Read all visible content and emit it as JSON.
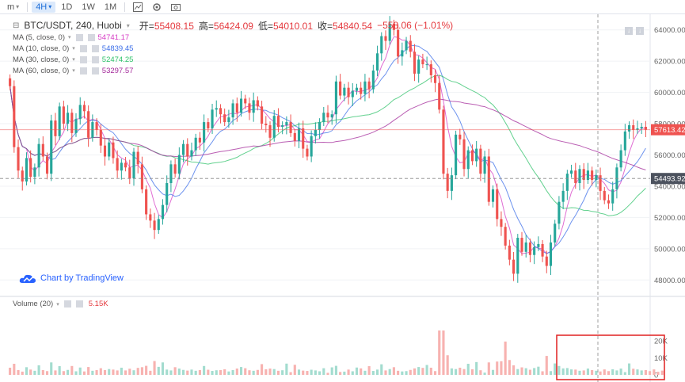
{
  "toolbar": {
    "interval_menu": "m",
    "active_interval": "4H",
    "intervals": [
      "1D",
      "1W",
      "1M"
    ]
  },
  "header": {
    "symbol": "BTC/USDT, 240, Huobi",
    "open_label": "开=",
    "open_value": "55408.15",
    "high_label": "高=",
    "high_value": "56424.09",
    "low_label": "低=",
    "low_value": "54010.01",
    "close_label": "收=",
    "close_value": "54840.54",
    "change": "−558.06 (−1.01%)"
  },
  "ma": [
    {
      "label": "MA (5, close, 0)",
      "value": "54741.17",
      "color": "#d63cc4"
    },
    {
      "label": "MA (10, close, 0)",
      "value": "54839.45",
      "color": "#3b6ee8"
    },
    {
      "label": "MA (30, close, 0)",
      "value": "52474.25",
      "color": "#2fc26a"
    },
    {
      "label": "MA (60, close, 0)",
      "value": "53297.57",
      "color": "#a3289a"
    }
  ],
  "watermark": "Chart by TradingView",
  "volume": {
    "label": "Volume (20)",
    "value": "5.15K",
    "ticks": [
      "20K",
      "10K",
      "0"
    ]
  },
  "price_axis": {
    "ticks": [
      "64000.00",
      "62000.00",
      "60000.00",
      "58000.00",
      "56000.00",
      "54000.00",
      "52000.00",
      "50000.00",
      "48000.00"
    ],
    "current_label": "57613.42",
    "cursor_label": "54493.92"
  },
  "colors": {
    "up": "#26a69a",
    "down": "#ef5350",
    "up_vol": "#a3dccf",
    "down_vol": "#f7b2b0",
    "highlight": "#e02020"
  },
  "chart_data": {
    "type": "candlestick",
    "ylim": [
      47000,
      65000
    ],
    "closes": [
      60400,
      56500,
      55000,
      54300,
      55800,
      54600,
      55200,
      56700,
      55900,
      54800,
      58200,
      57200,
      59100,
      58000,
      58700,
      57400,
      58300,
      59200,
      58800,
      57100,
      58100,
      57600,
      56600,
      55900,
      56800,
      55800,
      55000,
      55500,
      55200,
      54500,
      56200,
      55400,
      53800,
      52200,
      51800,
      51200,
      51900,
      52800,
      54200,
      55400,
      54800,
      56000,
      56700,
      55900,
      56300,
      57100,
      56800,
      58100,
      57700,
      58900,
      59000,
      58600,
      58100,
      58400,
      59300,
      58700,
      59600,
      59300,
      58700,
      59500,
      59100,
      58000,
      57900,
      57100,
      58500,
      57800,
      57900,
      58100,
      57400,
      56900,
      57700,
      56400,
      55900,
      57200,
      57600,
      58100,
      58700,
      58400,
      58600,
      60700,
      59800,
      60300,
      59700,
      60100,
      60300,
      59900,
      60700,
      60200,
      61400,
      62500,
      63600,
      63300,
      64400,
      64000,
      62300,
      62700,
      63300,
      62600,
      61200,
      62100,
      61800,
      61800,
      61100,
      60600,
      58900,
      54800,
      53700,
      54700,
      57300,
      57000,
      55100,
      56300,
      55600,
      56400,
      54800,
      55900,
      53000,
      53800,
      51900,
      51400,
      50200,
      49300,
      48400,
      50700,
      49800,
      50400,
      49600,
      50100,
      50300,
      49500,
      48900,
      50400,
      51600,
      53000,
      53700,
      54800,
      55000,
      54200,
      55100,
      54400,
      55000,
      54400,
      54700,
      53700,
      53100,
      52900,
      53800,
      55200,
      56300,
      57500,
      57900,
      57600,
      57700,
      57800,
      57610
    ],
    "volumes": [
      4.2,
      6.5,
      2.8,
      1.9,
      4.5,
      3.1,
      2.4,
      5.6,
      2.8,
      2.2,
      7.3,
      2.6,
      5.1,
      2.2,
      2.9,
      5.2,
      2.1,
      4.3,
      2.0,
      4.6,
      2.4,
      2.8,
      3.9,
      2.8,
      3.4,
      3.1,
      2.6,
      4.2,
      2.6,
      3.6,
      2.7,
      4.1,
      4.5,
      5.3,
      2.4,
      8.1,
      4.7,
      7.3,
      3.1,
      2.6,
      4.5,
      3.7,
      2.9,
      2.5,
      3.1,
      2.4,
      2.8,
      5.2,
      3.0,
      2.3,
      2.7,
      2.8,
      3.3,
      2.0,
      2.8,
      3.7,
      4.6,
      3.9,
      2.7,
      2.4,
      2.9,
      6.3,
      3.3,
      3.7,
      3.4,
      2.4,
      2.7,
      6.6,
      1.6,
      5.9,
      3.1,
      2.5,
      2.3,
      3.0,
      2.6,
      2.1,
      3.9,
      1.2,
      4.4,
      5.3,
      1.7,
      1.9,
      3.1,
      2.1,
      4.3,
      3.8,
      2.4,
      5.1,
      2.3,
      3.1,
      6.2,
      2.6,
      3.4,
      4.5,
      2.4,
      2.0,
      2.2,
      2.9,
      3.8,
      4.6,
      4.1,
      5.8,
      4.2,
      2.2,
      26,
      26,
      11.5,
      3.8,
      3.4,
      4.2,
      3.4,
      6.5,
      3.3,
      7.5,
      2.7,
      1.3,
      7.3,
      2.9,
      7.8,
      8.0,
      19.5,
      8.7,
      5.6,
      3.4,
      4.4,
      3.9,
      3.0,
      4.0,
      4.8,
      2.1,
      11.1,
      2.2,
      6.7,
      5.2,
      3.8,
      4.0,
      3.2,
      3.1,
      2.4,
      2.6,
      3.7,
      2.8,
      2.4,
      2.0,
      3.2,
      2.2,
      3.3,
      2.6,
      3.7,
      1.6,
      6.7,
      3.6,
      3.2,
      2.6,
      2.8,
      2.2,
      3.2,
      1.8,
      2.5
    ]
  }
}
